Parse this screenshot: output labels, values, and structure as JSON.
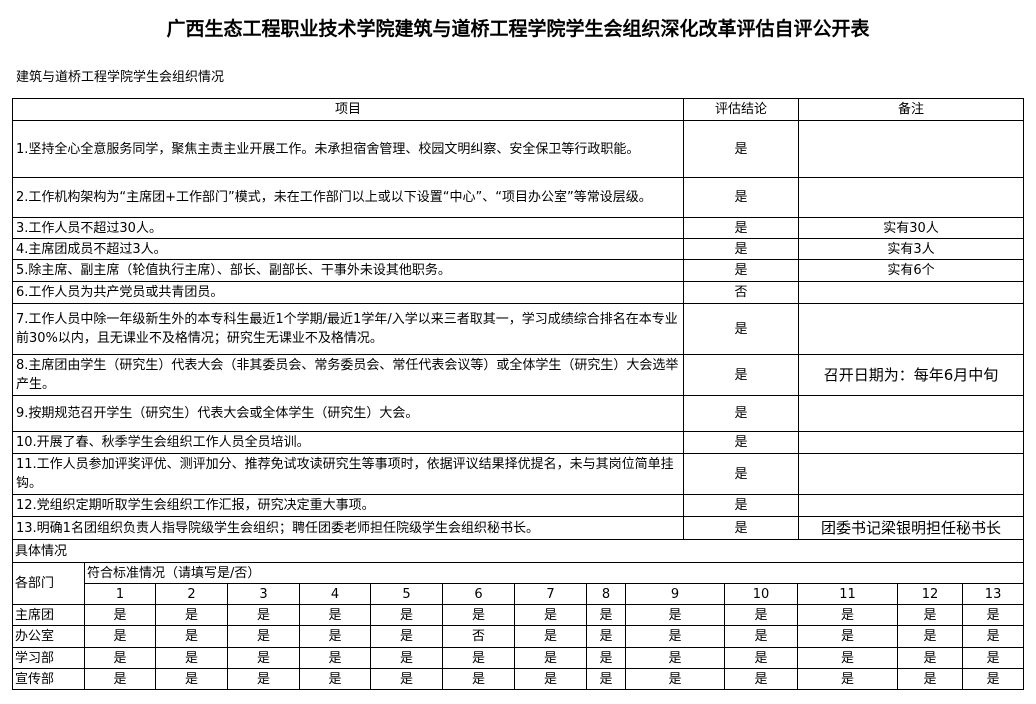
{
  "title": "广西生态工程职业技术学院建筑与道桥工程学院学生会组织深化改革评估自评公开表",
  "subtitle": "建筑与道桥工程学院学生会组织情况",
  "header": {
    "item": "项目",
    "conclusion": "评估结论",
    "remark": "备注"
  },
  "rows": [
    {
      "item": "1.坚持全心全意服务同学，聚焦主责主业开展工作。未承担宿舍管理、校园文明纠察、安全保卫等行政职能。",
      "conclusion": "是",
      "remark": ""
    },
    {
      "item": "2.工作机构架构为“主席团+工作部门”模式，未在工作部门以上或以下设置“中心”、“项目办公室”等常设层级。",
      "conclusion": "是",
      "remark": ""
    },
    {
      "item": "3.工作人员不超过30人。",
      "conclusion": "是",
      "remark": "实有30人"
    },
    {
      "item": "4.主席团成员不超过3人。",
      "conclusion": "是",
      "remark": "实有3人"
    },
    {
      "item": "5.除主席、副主席（轮值执行主席）、部长、副部长、干事外未设其他职务。",
      "conclusion": "是",
      "remark": "实有6个"
    },
    {
      "item": "6.工作人员为共产党员或共青团员。",
      "conclusion": "否",
      "remark": ""
    },
    {
      "item": "7.工作人员中除一年级新生外的本专科生最近1个学期/最近1学年/入学以来三者取其一，学习成绩综合排名在本专业前30%以内，且无课业不及格情况；研究生无课业不及格情况。",
      "conclusion": "是",
      "remark": ""
    },
    {
      "item": "8.主席团由学生（研究生）代表大会（非其委员会、常务委员会、常任代表会议等）或全体学生（研究生）大会选举产生。",
      "conclusion": "是",
      "remark": "召开日期为：每年6月中旬"
    },
    {
      "item": "9.按期规范召开学生（研究生）代表大会或全体学生（研究生）大会。",
      "conclusion": "是",
      "remark": ""
    },
    {
      "item": "10.开展了春、秋季学生会组织工作人员全员培训。",
      "conclusion": "是",
      "remark": ""
    },
    {
      "item": "11.工作人员参加评奖评优、测评加分、推荐免试攻读研究生等事项时，依据评议结果择优提名，未与其岗位简单挂钩。",
      "conclusion": "是",
      "remark": ""
    },
    {
      "item": "12.党组织定期听取学生会组织工作汇报，研究决定重大事项。",
      "conclusion": "是",
      "remark": ""
    },
    {
      "item": "13.明确1名团组织负责人指导院级学生会组织；聘任团委老师担任院级学生会组织秘书长。",
      "conclusion": "是",
      "remark": "团委书记梁银明担任秘书长"
    }
  ],
  "detail": {
    "label": "具体情况",
    "dept_header": "各部门",
    "standard_header": "符合标准情况（请填写是/否）",
    "numbers": [
      "1",
      "2",
      "3",
      "4",
      "5",
      "6",
      "7",
      "8",
      "9",
      "10",
      "11",
      "12",
      "13"
    ],
    "departments": [
      {
        "name": "主席团",
        "values": [
          "是",
          "是",
          "是",
          "是",
          "是",
          "是",
          "是",
          "是",
          "是",
          "是",
          "是",
          "是",
          "是"
        ]
      },
      {
        "name": "办公室",
        "values": [
          "是",
          "是",
          "是",
          "是",
          "是",
          "否",
          "是",
          "是",
          "是",
          "是",
          "是",
          "是",
          "是"
        ]
      },
      {
        "name": "学习部",
        "values": [
          "是",
          "是",
          "是",
          "是",
          "是",
          "是",
          "是",
          "是",
          "是",
          "是",
          "是",
          "是",
          "是"
        ]
      },
      {
        "name": "宣传部",
        "values": [
          "是",
          "是",
          "是",
          "是",
          "是",
          "是",
          "是",
          "是",
          "是",
          "是",
          "是",
          "是",
          "是"
        ]
      }
    ]
  }
}
